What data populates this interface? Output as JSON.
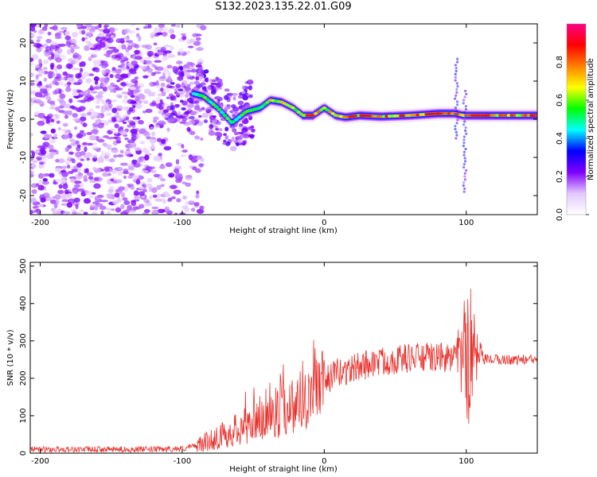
{
  "title": "S132.2023.135.22.01.G09",
  "colors": {
    "line": "#e8302b",
    "spectral": [
      "#ffffff",
      "#e4c8ff",
      "#8000ff",
      "#0000ff",
      "#00ffff",
      "#00ff00",
      "#ffff00",
      "#ff8000",
      "#ff0000",
      "#ff0088"
    ]
  },
  "chart_data": [
    {
      "type": "heatmap",
      "xlabel": "Height of straight line (km)",
      "ylabel": "Frequency (Hz)",
      "xlim": [
        -207,
        150
      ],
      "ylim": [
        -25,
        25
      ],
      "xticks": [
        -200,
        -100,
        0,
        100
      ],
      "yticks": [
        -20,
        -10,
        0,
        10,
        20
      ],
      "colorbar": {
        "label": "Normalized spectral amplitude",
        "range": [
          0,
          1
        ],
        "ticks": [
          0.0,
          0.2,
          0.4,
          0.6,
          0.8
        ]
      },
      "ridge": {
        "x": [
          -95,
          -85,
          -75,
          -65,
          -55,
          -45,
          -38,
          -30,
          -22,
          -15,
          -8,
          0,
          8,
          15,
          25,
          40,
          60,
          80,
          92,
          98,
          105,
          120,
          150
        ],
        "y": [
          7,
          6,
          3,
          -1,
          2,
          3,
          5,
          4.5,
          3,
          1,
          1,
          3,
          1,
          0.5,
          1,
          0.7,
          1,
          1.5,
          1.5,
          1,
          1,
          1,
          1
        ]
      }
    },
    {
      "type": "line",
      "xlabel": "Height of straight line (km)",
      "ylabel": "SNR (10 * v/v)",
      "xlim": [
        -207,
        150
      ],
      "ylim": [
        0,
        510
      ],
      "xticks": [
        -200,
        -100,
        0,
        100
      ],
      "yticks": [
        0,
        100,
        200,
        300,
        400,
        500
      ],
      "series": [
        {
          "x": [
            -207,
            -180,
            -150,
            -120,
            -100,
            -90,
            -80,
            -70,
            -60,
            -50,
            -40,
            -30,
            -20,
            -10,
            0,
            10,
            20,
            30,
            40,
            50,
            60,
            70,
            80,
            90,
            95,
            100,
            105,
            110,
            120,
            130,
            140,
            150
          ],
          "values": [
            10,
            10,
            10,
            10,
            12,
            20,
            35,
            50,
            65,
            80,
            95,
            115,
            135,
            160,
            195,
            215,
            225,
            238,
            245,
            250,
            255,
            255,
            255,
            255,
            250,
            260,
            250,
            250,
            250,
            250,
            250,
            250
          ]
        }
      ]
    }
  ]
}
